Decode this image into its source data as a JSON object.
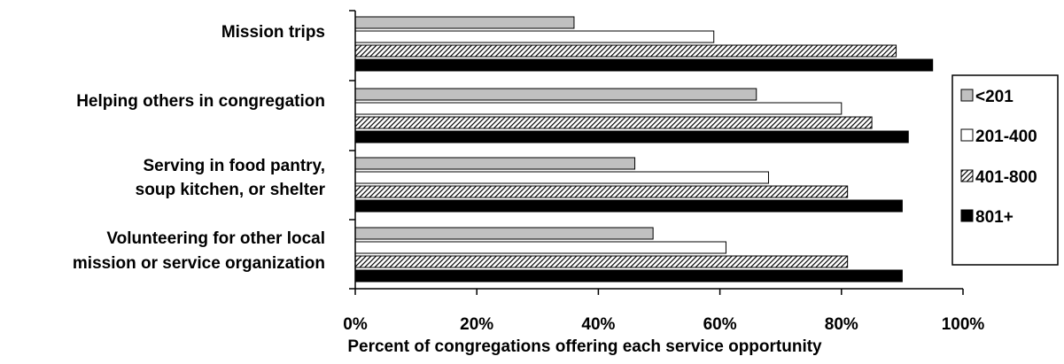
{
  "chart_data": {
    "type": "bar",
    "orientation": "horizontal",
    "categories": [
      [
        "Mission trips"
      ],
      [
        "Helping others in congregation"
      ],
      [
        "Serving in food pantry,",
        "soup kitchen, or shelter"
      ],
      [
        "Volunteering for other local",
        "mission or service organization"
      ]
    ],
    "series": [
      {
        "name": "<201",
        "values": [
          36,
          66,
          46,
          49
        ],
        "fill": "#c0c0c0",
        "pattern": "solid"
      },
      {
        "name": "201-400",
        "values": [
          59,
          80,
          68,
          61
        ],
        "fill": "#ffffff",
        "pattern": "solid"
      },
      {
        "name": "401-800",
        "values": [
          89,
          85,
          81,
          81
        ],
        "fill": "#808080",
        "pattern": "hatch"
      },
      {
        "name": "801+",
        "values": [
          95,
          91,
          90,
          90
        ],
        "fill": "#000000",
        "pattern": "solid"
      }
    ],
    "xlim": [
      0,
      100
    ],
    "x_ticks": [
      "0%",
      "20%",
      "40%",
      "60%",
      "80%",
      "100%"
    ],
    "xlabel": "Percent of congregations offering each service opportunity",
    "ylabel": "",
    "title": "",
    "grid": false,
    "legend_position": "right"
  }
}
